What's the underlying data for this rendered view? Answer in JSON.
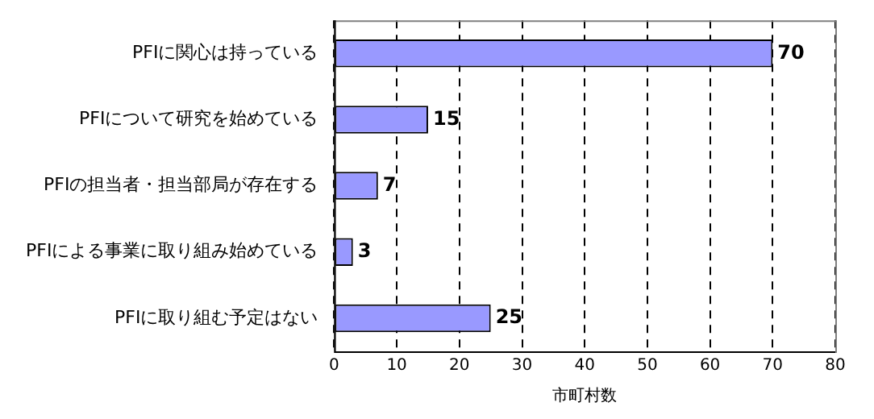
{
  "chart_data": {
    "type": "bar",
    "orientation": "horizontal",
    "categories": [
      "PFIに関心は持っている",
      "PFIについて研究を始めている",
      "PFIの担当者・担当部局が存在する",
      "PFIによる事業に取り組み始めている",
      "PFIに取り組む予定はない"
    ],
    "values": [
      70,
      15,
      7,
      3,
      25
    ],
    "color": "#9999ff",
    "xlim": [
      0,
      80
    ],
    "xticks": [
      0,
      10,
      20,
      30,
      40,
      50,
      60,
      70,
      80
    ],
    "xlabel": "市町村数",
    "grid": "x",
    "data_labels": true
  }
}
